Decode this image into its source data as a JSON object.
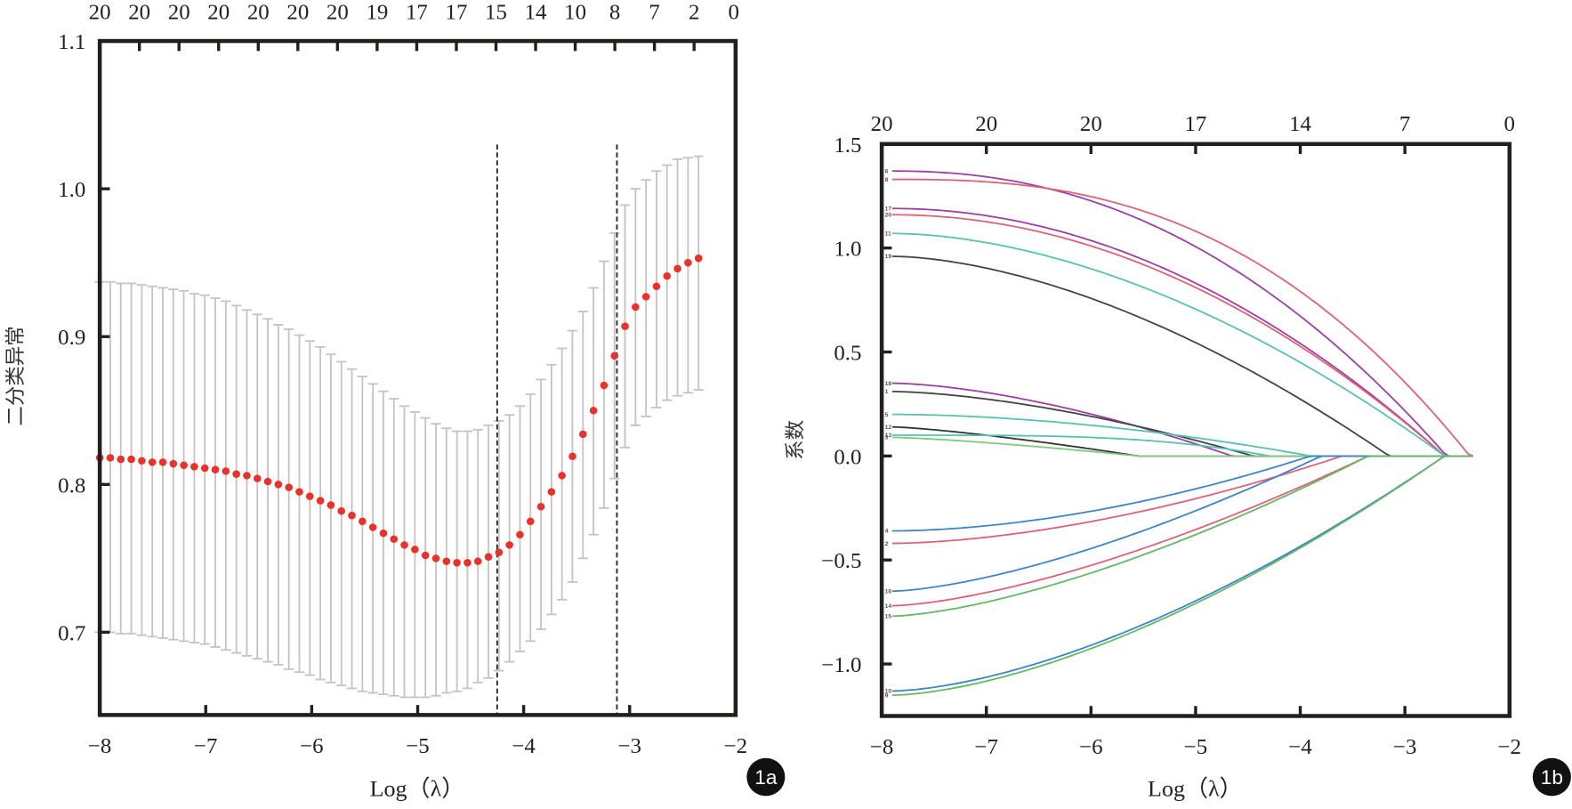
{
  "chart_data": [
    {
      "id": "1a",
      "type": "scatter",
      "subtype": "cross-validation error plot with error bars",
      "badge": "1a",
      "xlabel": "Log（λ）",
      "ylabel": "二分类异常",
      "xlim": [
        -8,
        -2
      ],
      "ylim": [
        0.644,
        1.1
      ],
      "x_ticks": [
        -8,
        -7,
        -6,
        -5,
        -4,
        -3,
        -2
      ],
      "y_ticks": [
        0.7,
        0.8,
        0.9,
        1.0,
        1.1
      ],
      "y_tick_labels": [
        "0.7",
        "0.8",
        "0.9",
        "1.0",
        "1.1"
      ],
      "top_axis_labels": [
        "20",
        "20",
        "20",
        "20",
        "20",
        "20",
        "20",
        "19",
        "17",
        "17",
        "15",
        "14",
        "10",
        "8",
        "7",
        "2",
        "0"
      ],
      "vlines": [
        -4.25,
        -3.12
      ],
      "colors": {
        "points": "#e8322b",
        "errorbars": "#c9c1c0",
        "vlines": "#222222",
        "frame": "#231f1c"
      },
      "points": {
        "x_start": -8.0,
        "x_end": -2.35,
        "count": 58,
        "mean": [
          0.818,
          0.818,
          0.817,
          0.817,
          0.816,
          0.815,
          0.815,
          0.814,
          0.813,
          0.812,
          0.811,
          0.81,
          0.809,
          0.807,
          0.806,
          0.804,
          0.802,
          0.8,
          0.798,
          0.795,
          0.792,
          0.789,
          0.786,
          0.782,
          0.779,
          0.775,
          0.771,
          0.767,
          0.763,
          0.759,
          0.756,
          0.752,
          0.75,
          0.748,
          0.747,
          0.747,
          0.748,
          0.751,
          0.754,
          0.759,
          0.766,
          0.775,
          0.785,
          0.795,
          0.806,
          0.819,
          0.834,
          0.85,
          0.867,
          0.887,
          0.907,
          0.92,
          0.927,
          0.934,
          0.941,
          0.946,
          0.95,
          0.953
        ],
        "upper": [
          0.937,
          0.937,
          0.936,
          0.936,
          0.935,
          0.934,
          0.933,
          0.932,
          0.931,
          0.929,
          0.928,
          0.926,
          0.924,
          0.921,
          0.918,
          0.915,
          0.912,
          0.908,
          0.905,
          0.901,
          0.897,
          0.893,
          0.888,
          0.883,
          0.878,
          0.873,
          0.868,
          0.863,
          0.858,
          0.853,
          0.849,
          0.845,
          0.841,
          0.838,
          0.836,
          0.836,
          0.837,
          0.84,
          0.843,
          0.847,
          0.853,
          0.861,
          0.871,
          0.881,
          0.892,
          0.904,
          0.917,
          0.933,
          0.951,
          0.97,
          0.989,
          1.0,
          1.006,
          1.012,
          1.016,
          1.02,
          1.021,
          1.022
        ],
        "lower": [
          0.7,
          0.7,
          0.699,
          0.699,
          0.698,
          0.697,
          0.696,
          0.695,
          0.694,
          0.693,
          0.692,
          0.69,
          0.688,
          0.686,
          0.684,
          0.682,
          0.68,
          0.678,
          0.675,
          0.673,
          0.671,
          0.668,
          0.666,
          0.664,
          0.662,
          0.66,
          0.659,
          0.658,
          0.657,
          0.656,
          0.656,
          0.656,
          0.657,
          0.659,
          0.66,
          0.662,
          0.666,
          0.669,
          0.674,
          0.68,
          0.687,
          0.694,
          0.702,
          0.712,
          0.722,
          0.734,
          0.75,
          0.766,
          0.784,
          0.804,
          0.825,
          0.84,
          0.846,
          0.852,
          0.857,
          0.86,
          0.862,
          0.864
        ]
      }
    },
    {
      "id": "1b",
      "type": "line",
      "subtype": "coefficient paths",
      "badge": "1b",
      "xlabel": "Log（λ）",
      "ylabel": "系数",
      "xlim": [
        -8,
        -2
      ],
      "ylim": [
        -1.25,
        1.5
      ],
      "x_ticks": [
        -8,
        -7,
        -6,
        -5,
        -4,
        -3,
        -2
      ],
      "y_ticks": [
        -1.0,
        -0.5,
        0.0,
        0.5,
        1.0,
        1.5
      ],
      "y_tick_labels": [
        "−1.0",
        "−0.5",
        "0.0",
        "0.5",
        "1.0",
        "1.5"
      ],
      "top_axis_labels": [
        "20",
        "20",
        "20",
        "17",
        "14",
        "7",
        "0"
      ],
      "colors": {
        "frame": "#231f1c"
      },
      "series": [
        {
          "name": "6",
          "color": "#9b3fa6",
          "start": 1.37,
          "zero_at": -2.6,
          "shape": 2.2
        },
        {
          "name": "8",
          "color": "#e0607a",
          "start": 1.33,
          "zero_at": -2.38,
          "shape": 2.6
        },
        {
          "name": "17",
          "color": "#9b3fa6",
          "start": 1.19,
          "zero_at": -2.62,
          "shape": 2.0
        },
        {
          "name": "20",
          "color": "#e0607a",
          "start": 1.16,
          "zero_at": -2.62,
          "shape": 2.0
        },
        {
          "name": "11",
          "color": "#55c2b2",
          "start": 1.07,
          "zero_at": -2.62,
          "shape": 1.8
        },
        {
          "name": "19",
          "color": "#444444",
          "start": 0.96,
          "zero_at": -3.15,
          "shape": 1.7
        },
        {
          "name": "18",
          "color": "#9b3fa6",
          "start": 0.35,
          "zero_at": -4.65,
          "shape": 1.6
        },
        {
          "name": "1",
          "color": "#444444",
          "start": 0.31,
          "zero_at": -4.45,
          "shape": 1.6
        },
        {
          "name": "5",
          "color": "#55c2b2",
          "start": 0.2,
          "zero_at": -3.9,
          "shape": 1.8
        },
        {
          "name": "12",
          "color": "#333333",
          "start": 0.14,
          "zero_at": -5.55,
          "shape": 1.3
        },
        {
          "name": "13",
          "color": "#55c2b2",
          "start": 0.1,
          "zero_at": -4.3,
          "shape": 3.5
        },
        {
          "name": "3",
          "color": "#7fc97f",
          "start": 0.09,
          "zero_at": -5.55,
          "shape": 1.3
        },
        {
          "name": "4",
          "color": "#3d85c6",
          "start": -0.36,
          "zero_at": -3.9,
          "shape": 1.8
        },
        {
          "name": "2",
          "color": "#e0607a",
          "start": -0.42,
          "zero_at": -3.6,
          "shape": 1.7
        },
        {
          "name": "16",
          "color": "#3d85c6",
          "start": -0.65,
          "zero_at": -3.8,
          "shape": 1.5
        },
        {
          "name": "14",
          "color": "#e0607a",
          "start": -0.72,
          "zero_at": -3.35,
          "shape": 1.5
        },
        {
          "name": "15",
          "color": "#63b963",
          "start": -0.77,
          "zero_at": -3.35,
          "shape": 1.5
        },
        {
          "name": "10",
          "color": "#3d85c6",
          "start": -1.13,
          "zero_at": -2.62,
          "shape": 1.6
        },
        {
          "name": "9",
          "color": "#63b963",
          "start": -1.15,
          "zero_at": -2.62,
          "shape": 1.6
        }
      ]
    }
  ]
}
